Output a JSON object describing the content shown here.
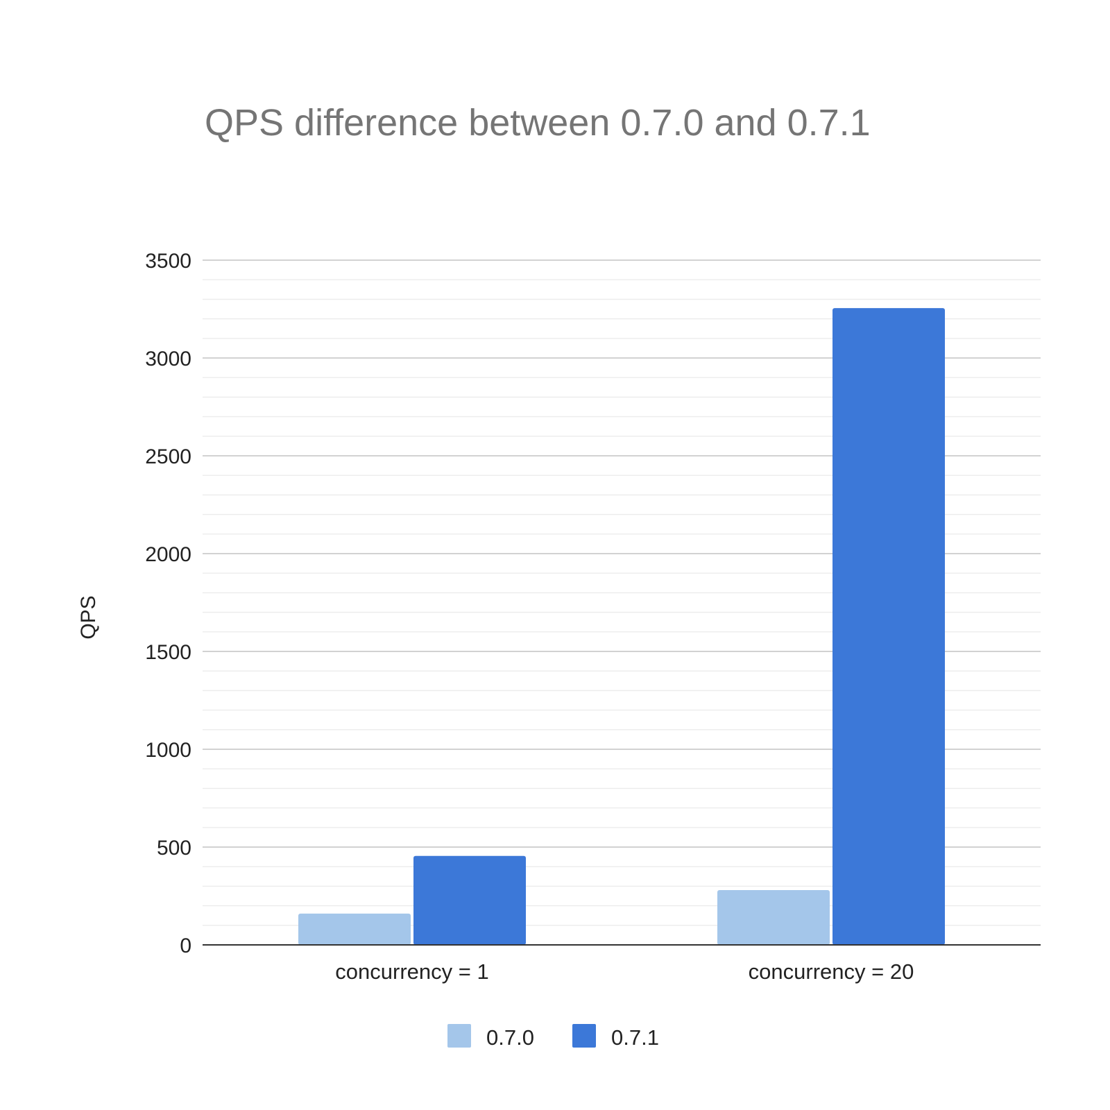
{
  "chart_data": {
    "type": "bar",
    "title": "QPS difference between 0.7.0 and 0.7.1",
    "xlabel": "",
    "ylabel": "QPS",
    "categories": [
      "concurrency = 1",
      "concurrency = 20"
    ],
    "series": [
      {
        "name": "0.7.0",
        "color": "#a4c6ea",
        "values": [
          160,
          280
        ]
      },
      {
        "name": "0.7.1",
        "color": "#3c78d8",
        "values": [
          455,
          3255
        ]
      }
    ],
    "ylim": [
      0,
      3500
    ],
    "yticks": [
      "0",
      "500",
      "1000",
      "1500",
      "2000",
      "2500",
      "3000",
      "3500"
    ],
    "grid": true,
    "legend_position": "bottom"
  }
}
